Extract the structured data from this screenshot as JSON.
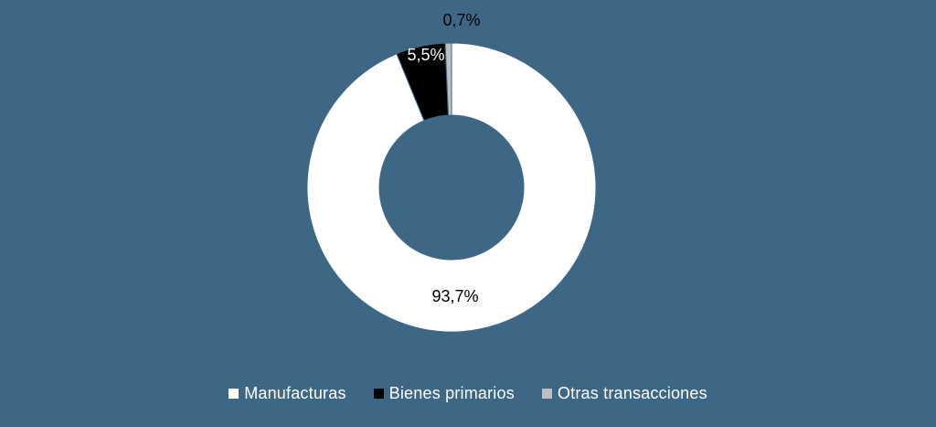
{
  "chart_data": {
    "type": "pie",
    "variant": "donut",
    "categories": [
      "Manufacturas",
      "Bienes primarios",
      "Otras transacciones"
    ],
    "values": [
      93.7,
      5.5,
      0.7
    ],
    "data_labels": [
      "93,7%",
      "5,5%",
      "0,7%"
    ],
    "colors": [
      "#ffffff",
      "#000000",
      "#bfbfbf"
    ],
    "legend_position": "bottom",
    "title": ""
  },
  "background_color": "#3e6786"
}
